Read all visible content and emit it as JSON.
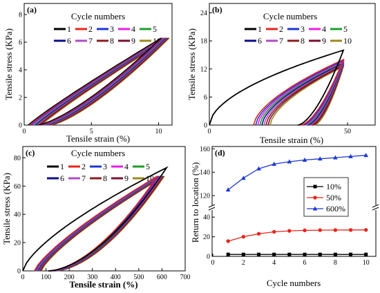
{
  "series_colors": [
    "#000000",
    "#e8241b",
    "#1c36d6",
    "#e81ee8",
    "#1b9e2a",
    "#0c0c8a",
    "#b04bc8",
    "#8b1c1c",
    "#7a1030",
    "#9a8a1e"
  ],
  "chart_data": [
    {
      "panel": "(a)",
      "type": "line",
      "legend_title": "Cycle numbers",
      "legend_entries": [
        "1",
        "2",
        "3",
        "4",
        "5",
        "6",
        "7",
        "8",
        "9",
        "10"
      ],
      "xlabel": "Tensile strain (%)",
      "ylabel": "Tensile stress (KPa)",
      "xlim": [
        0,
        11
      ],
      "ylim": [
        0,
        8.8
      ],
      "xticks": [
        "0",
        "5",
        "10"
      ],
      "yticks": [
        "0",
        "2",
        "4",
        "6",
        "8"
      ],
      "loops": {
        "max_strain": 10.5,
        "max_stress": 6.3,
        "start_strain_first": 0.3,
        "start_strain_last": 1.3,
        "peak_strain_spread": 0.6
      }
    },
    {
      "panel": "(b)",
      "type": "line",
      "legend_title": "Cycle numbers",
      "legend_entries": [
        "1",
        "2",
        "3",
        "4",
        "5",
        "6",
        "7",
        "8",
        "9",
        "10"
      ],
      "xlabel": "Tensile strain (%)",
      "ylabel": "Tensile stress (KPa)",
      "xlim": [
        0,
        60
      ],
      "ylim": [
        0,
        26
      ],
      "xticks": [
        "0",
        "50"
      ],
      "yticks": [
        "0",
        "6",
        "12",
        "18",
        "24"
      ],
      "loops": {
        "max_strain": 48.5,
        "first_max_stress": 16,
        "max_stress": 14,
        "start_strain_first": 0,
        "start_strain_second": 16,
        "start_strain_last": 22,
        "unload_end_strain": 33,
        "unload_end_strain_last": 38
      }
    },
    {
      "panel": "(c)",
      "type": "line",
      "legend_title": "Cycle numbers",
      "legend_entries": [
        "1",
        "2",
        "3",
        "4",
        "5",
        "6",
        "7",
        "8",
        "9",
        "10"
      ],
      "xlabel": "Tensile strain (%)",
      "ylabel": "Tensile stress (KPa)",
      "xlim": [
        0,
        700
      ],
      "ylim": [
        0,
        88
      ],
      "xticks": [
        "0",
        "100",
        "200",
        "300",
        "400",
        "500",
        "600",
        "700"
      ],
      "yticks": [
        "0",
        "20",
        "40",
        "60",
        "80"
      ],
      "loops": {
        "max_strain": 620,
        "first_max_stress": 73,
        "max_stress": 67,
        "start_strain_second": 50,
        "start_strain_last": 80,
        "unload_end_strain": 110,
        "unload_end_strain_last": 140
      }
    },
    {
      "panel": "(d)",
      "type": "line",
      "xlabel": "Cycle numbers",
      "ylabel": "Return to location (%)",
      "x": [
        1,
        2,
        3,
        4,
        5,
        6,
        7,
        8,
        9,
        10
      ],
      "xticks": [
        "0",
        "2",
        "4",
        "6",
        "8",
        "10"
      ],
      "broken_y_axis": true,
      "lower_yticks": [
        "0",
        "20",
        "40"
      ],
      "upper_yticks": [
        "120",
        "140",
        "160"
      ],
      "series": [
        {
          "name": "10%",
          "color": "#000000",
          "marker": "square",
          "values": [
            2,
            2,
            2,
            2,
            2,
            2,
            2,
            2,
            2,
            2
          ]
        },
        {
          "name": "50%",
          "color": "#e8241b",
          "marker": "circle",
          "values": [
            15.5,
            20,
            23,
            25,
            26,
            26.5,
            26.7,
            26.8,
            26.9,
            27
          ]
        },
        {
          "name": "600%",
          "color": "#1c36d6",
          "marker": "triangle",
          "values": [
            125,
            135,
            143,
            147,
            149,
            150.5,
            151.5,
            152.5,
            153.5,
            154.5
          ]
        }
      ]
    }
  ]
}
